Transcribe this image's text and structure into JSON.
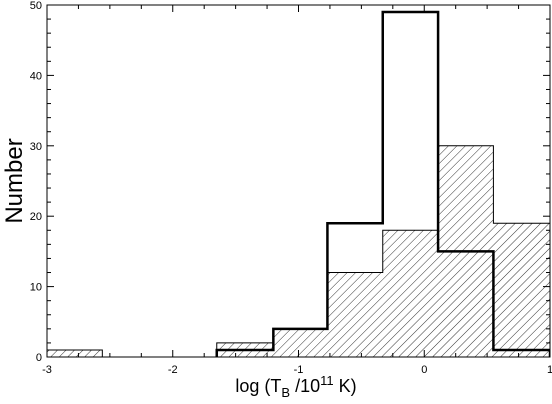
{
  "chart_data": {
    "type": "bar",
    "subtype": "step-histogram",
    "title": "",
    "xlabel": {
      "prefix": "log (T",
      "sub": "B",
      "middle": " /10",
      "sup": "11",
      "suffix": " K)"
    },
    "ylabel": "Number",
    "xlim": [
      -3,
      1
    ],
    "ylim": [
      0,
      50
    ],
    "x_ticks": [
      -3,
      -2,
      -1,
      0,
      1
    ],
    "x_tick_labels": [
      "-3",
      "-2",
      "-1",
      "0",
      "1"
    ],
    "x_minor_step": 0.25,
    "y_ticks": [
      0,
      10,
      20,
      30,
      40,
      50
    ],
    "y_tick_labels": [
      "0",
      "10",
      "20",
      "30",
      "40",
      "50"
    ],
    "y_minor_step": 2,
    "grid": false,
    "series": [
      {
        "style": "outline-thick",
        "color": "#000000",
        "bins": [
          {
            "x0": -1.65,
            "x1": -1.2,
            "value": 1
          },
          {
            "x0": -1.2,
            "x1": -0.77,
            "value": 4
          },
          {
            "x0": -0.77,
            "x1": -0.33,
            "value": 19
          },
          {
            "x0": -0.33,
            "x1": 0.11,
            "value": 49
          },
          {
            "x0": 0.11,
            "x1": 0.55,
            "value": 15
          },
          {
            "x0": 0.55,
            "x1": 1.0,
            "value": 1
          }
        ]
      },
      {
        "style": "hatched",
        "color": "#000000",
        "bins": [
          {
            "x0": -3.0,
            "x1": -2.56,
            "value": 1
          },
          {
            "x0": -2.56,
            "x1": -2.09,
            "value": 0
          },
          {
            "x0": -2.09,
            "x1": -1.65,
            "value": 0
          },
          {
            "x0": -1.65,
            "x1": -1.2,
            "value": 2
          },
          {
            "x0": -1.2,
            "x1": -0.77,
            "value": 4
          },
          {
            "x0": -0.77,
            "x1": -0.33,
            "value": 12
          },
          {
            "x0": -0.33,
            "x1": 0.11,
            "value": 18
          },
          {
            "x0": 0.11,
            "x1": 0.55,
            "value": 30
          },
          {
            "x0": 0.55,
            "x1": 1.0,
            "value": 19
          }
        ]
      }
    ]
  }
}
